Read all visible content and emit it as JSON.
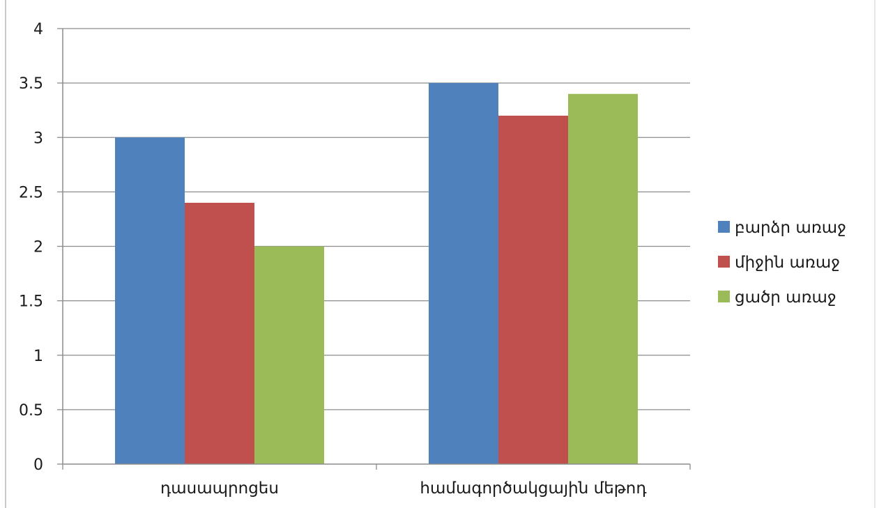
{
  "chart_data": {
    "type": "bar",
    "title": "",
    "xlabel": "",
    "ylabel": "",
    "categories": [
      "դասապրոցես",
      "համագործակցային մեթոդ"
    ],
    "series": [
      {
        "name": "բարձր առաջ",
        "color": "#4f81bd",
        "values": [
          3.0,
          3.5
        ]
      },
      {
        "name": "միջին առաջ",
        "color": "#c0504d",
        "values": [
          2.4,
          3.2
        ]
      },
      {
        "name": "ցածր առաջ",
        "color": "#9bbb59",
        "values": [
          2.0,
          3.4
        ]
      }
    ],
    "ylim": [
      0,
      4
    ],
    "yticks": [
      "0",
      "0.5",
      "1",
      "1.5",
      "2",
      "2.5",
      "3",
      "3.5",
      "4"
    ],
    "grid": true,
    "legend": "right"
  }
}
